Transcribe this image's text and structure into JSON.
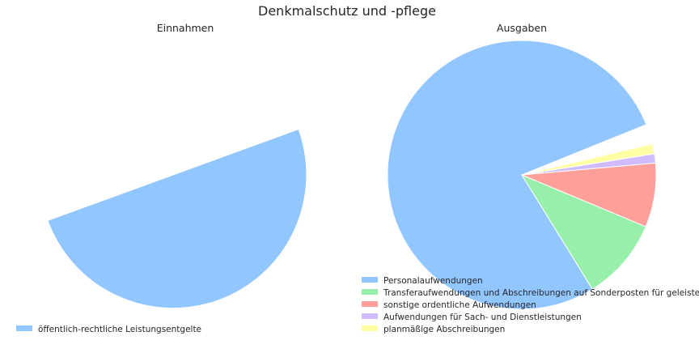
{
  "title": "Denkmalschutz und -pflege",
  "chart_data": [
    {
      "type": "pie",
      "title": "Einnahmen",
      "start_angle_deg": 200,
      "counterclock": true,
      "slices": [
        {
          "label": "öffentlich-rechtliche Leistungsentgelte",
          "value": 50,
          "color": "#92c6ff"
        }
      ],
      "legend_position": "lower-left"
    },
    {
      "type": "pie",
      "title": "Ausgaben",
      "start_angle_deg": 22,
      "counterclock": true,
      "slices": [
        {
          "label": "Personalaufwendungen",
          "value": 77.7,
          "color": "#92c6ff"
        },
        {
          "label": "Transferaufwendungen und Abschreibungen auf Sonderposten für geleistete",
          "value": 9.9,
          "color": "#97f0aa"
        },
        {
          "label": "sonstige ordentliche Aufwendungen",
          "value": 7.7,
          "color": "#ff9f9a"
        },
        {
          "label": "Aufwendungen für Sach- und Dienstleistungen",
          "value": 1.1,
          "color": "#d0bbff"
        },
        {
          "label": "planmäßige Abschreibungen",
          "value": 1.2,
          "color": "#fffea3"
        }
      ],
      "legend_position": "lower-right"
    }
  ]
}
